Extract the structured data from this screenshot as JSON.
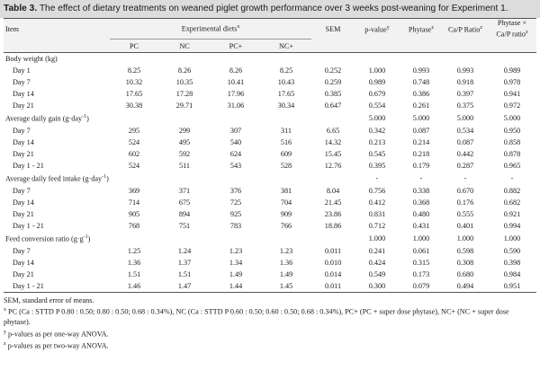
{
  "title": {
    "label": "Table 3.",
    "text": " The effect of dietary treatments on weaned piglet growth performance over 3 weeks post-weaning for Experiment 1."
  },
  "header": {
    "item": "Item",
    "experimental": "Experimental diets",
    "experimental_sup": "x",
    "sem": "SEM",
    "pvalue": "p-value",
    "pvalue_sup": "y",
    "phytase": "Phytase",
    "phytase_sup": "z",
    "ratio": "Ca/P Ratio",
    "ratio_sup": "z",
    "inter_line1": "Phytase ×",
    "inter_line2": "Ca/P ratio",
    "inter_sup": "z",
    "diets": [
      "PC",
      "NC",
      "PC+",
      "NC+"
    ]
  },
  "rows": [
    {
      "type": "section",
      "label": "Body weight (kg)",
      "cells": [
        "",
        "",
        "",
        "",
        "",
        "",
        "",
        "",
        ""
      ]
    },
    {
      "type": "data",
      "label": "Day 1",
      "cells": [
        "8.25",
        "8.26",
        "8.26",
        "8.25",
        "0.252",
        "1.000",
        "0.993",
        "0.993",
        "0.989"
      ]
    },
    {
      "type": "data",
      "label": "Day 7",
      "cells": [
        "10.32",
        "10.35",
        "10.41",
        "10.43",
        "0.259",
        "0.989",
        "0.748",
        "0.918",
        "0.978"
      ]
    },
    {
      "type": "data",
      "label": "Day 14",
      "cells": [
        "17.65",
        "17.28",
        "17.96",
        "17.65",
        "0.385",
        "0.679",
        "0.386",
        "0.397",
        "0.941"
      ]
    },
    {
      "type": "data",
      "label": "Day 21",
      "cells": [
        "30.38",
        "29.71",
        "31.06",
        "30.34",
        "0.647",
        "0.554",
        "0.261",
        "0.375",
        "0.972"
      ]
    },
    {
      "type": "section",
      "label": "Average daily gain (g·day",
      "sup": "-1",
      "tail": ")",
      "cells": [
        "",
        "",
        "",
        "",
        "",
        "5.000",
        "5.000",
        "5.000",
        "5.000"
      ]
    },
    {
      "type": "data",
      "label": "Day 7",
      "cells": [
        "295",
        "299",
        "307",
        "311",
        "6.65",
        "0.342",
        "0.087",
        "0.534",
        "0.950"
      ]
    },
    {
      "type": "data",
      "label": "Day 14",
      "cells": [
        "524",
        "495",
        "540",
        "516",
        "14.32",
        "0.213",
        "0.214",
        "0.087",
        "0.858"
      ]
    },
    {
      "type": "data",
      "label": "Day 21",
      "cells": [
        "602",
        "592",
        "624",
        "609",
        "15.45",
        "0.545",
        "0.218",
        "0.442",
        "0.878"
      ]
    },
    {
      "type": "data",
      "label": "Day 1 - 21",
      "cells": [
        "524",
        "511",
        "543",
        "528",
        "12.76",
        "0.395",
        "0.179",
        "0.287",
        "0.965"
      ]
    },
    {
      "type": "section",
      "label": "Average daily feed intake (g·day",
      "sup": "-1",
      "tail": ")",
      "cells": [
        "",
        "",
        "",
        "",
        "",
        "-",
        "-",
        "-",
        "-"
      ]
    },
    {
      "type": "data",
      "label": "Day 7",
      "cells": [
        "369",
        "371",
        "376",
        "381",
        "8.04",
        "0.756",
        "0.338",
        "0.670",
        "0.882"
      ]
    },
    {
      "type": "data",
      "label": "Day 14",
      "cells": [
        "714",
        "675",
        "725",
        "704",
        "21.45",
        "0.412",
        "0.368",
        "0.176",
        "0.682"
      ]
    },
    {
      "type": "data",
      "label": "Day 21",
      "cells": [
        "905",
        "894",
        "925",
        "909",
        "23.86",
        "0.831",
        "0.480",
        "0.555",
        "0.921"
      ]
    },
    {
      "type": "data",
      "label": "Day 1 - 21",
      "cells": [
        "768",
        "751",
        "783",
        "766",
        "18.86",
        "0.712",
        "0.431",
        "0.401",
        "0.994"
      ]
    },
    {
      "type": "section",
      "label": "Feed conversion ratio (g·g",
      "sup": "-1",
      "tail": ")",
      "cells": [
        "",
        "",
        "",
        "",
        "",
        "1.000",
        "1.000",
        "1.000",
        "1.000"
      ]
    },
    {
      "type": "data",
      "label": "Day 7",
      "cells": [
        "1.25",
        "1.24",
        "1.23",
        "1.23",
        "0.011",
        "0.241",
        "0.061",
        "0.598",
        "0.590"
      ]
    },
    {
      "type": "data",
      "label": "Day 14",
      "cells": [
        "1.36",
        "1.37",
        "1.34",
        "1.36",
        "0.010",
        "0.424",
        "0.315",
        "0.308",
        "0.398"
      ]
    },
    {
      "type": "data",
      "label": "Day 21",
      "cells": [
        "1.51",
        "1.51",
        "1.49",
        "1.49",
        "0.014",
        "0.549",
        "0.173",
        "0.680",
        "0.984"
      ]
    },
    {
      "type": "data",
      "label": "Day 1 - 21",
      "cells": [
        "1.46",
        "1.47",
        "1.44",
        "1.45",
        "0.011",
        "0.300",
        "0.079",
        "0.494",
        "0.951"
      ]
    }
  ],
  "footnotes": {
    "sem": "SEM, standard error of means.",
    "x_mark": "x",
    "x_text": " PC (Ca : STTD P 0.80 : 0.50; 0.80 : 0.50; 0.68 : 0.34%), NC (Ca : STTD P 0.60 : 0.50; 0.60 : 0.50; 0.68 : 0.34%), PC+ (PC + super dose phytase), NC+ (NC + super dose phytase).",
    "y_mark": "y",
    "y_text": " p-values as per one-way ANOVA.",
    "z_mark": "z",
    "z_text": " p-values as per two-way ANOVA."
  }
}
